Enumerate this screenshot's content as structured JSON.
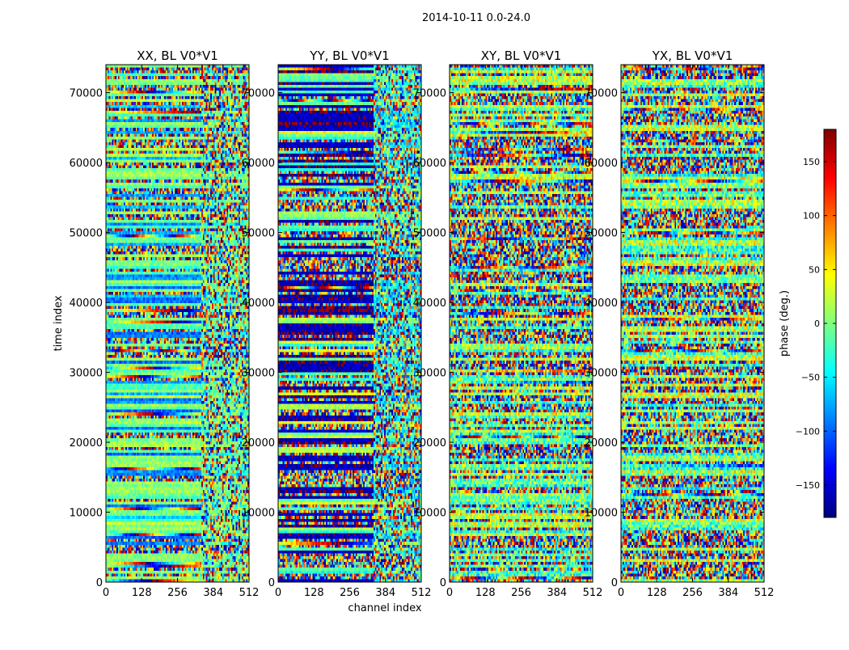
{
  "chart_data": {
    "type": "heatmap",
    "suptitle": "2014-10-11 0.0-24.0",
    "xlabel": "channel index",
    "ylabel": "time index",
    "xlim": [
      0,
      512
    ],
    "ylim": [
      0,
      74000
    ],
    "xticks": [
      0,
      128,
      256,
      384,
      512
    ],
    "yticks": [
      0,
      10000,
      20000,
      30000,
      40000,
      50000,
      60000,
      70000
    ],
    "panels": [
      {
        "title": "XX, BL V0*V1",
        "pol": "XX"
      },
      {
        "title": "YY, BL V0*V1",
        "pol": "YY"
      },
      {
        "title": "XY, BL V0*V1",
        "pol": "XY"
      },
      {
        "title": "YX, BL V0*V1",
        "pol": "YX"
      }
    ],
    "colorbar": {
      "label": "phase (deg.)",
      "range": [
        -180,
        180
      ],
      "ticks": [
        -150,
        -100,
        -50,
        0,
        50,
        100,
        150
      ],
      "colormap": "jet",
      "colors": [
        "#00007f",
        "#0000ff",
        "#007fff",
        "#00ffff",
        "#7fff7f",
        "#ffff00",
        "#ff7f00",
        "#ff0000",
        "#7f0000"
      ]
    }
  }
}
